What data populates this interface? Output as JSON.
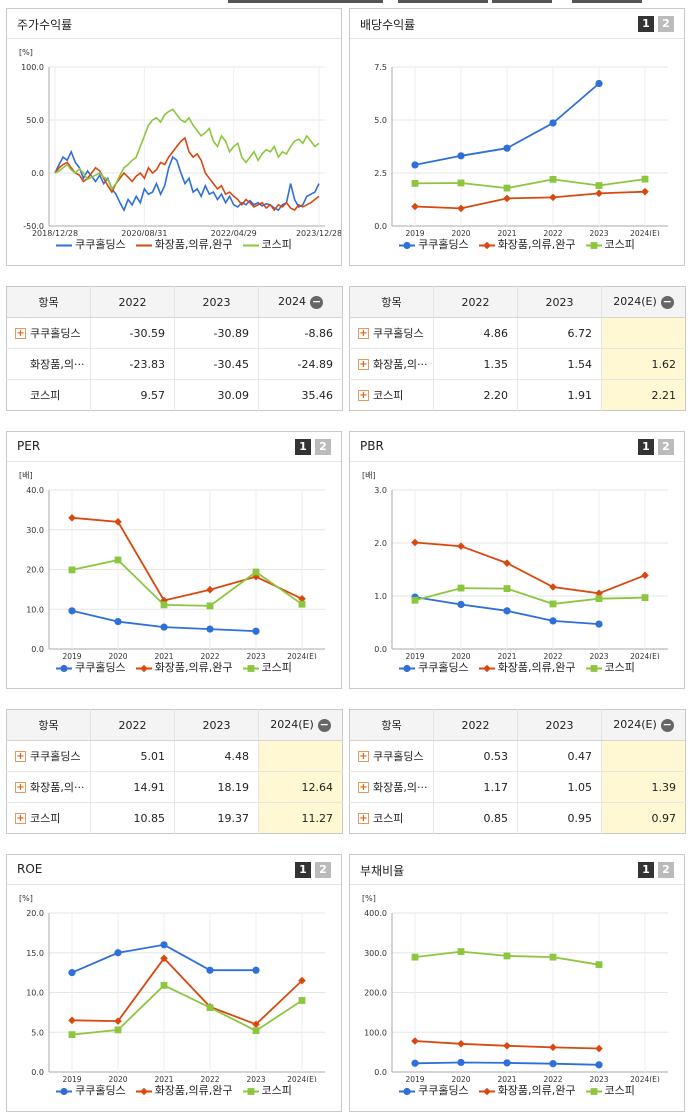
{
  "colors": {
    "kukuh": "#2e6fd9",
    "cosmetics": "#d9480f",
    "kospi": "#8cc63f"
  },
  "legend": {
    "kukuh": "쿠쿠홀딩스",
    "cosmetics": "화장품,의류,완구",
    "kospi": "코스피"
  },
  "panels": {
    "stock_return": {
      "title": "주가수익률"
    },
    "dividend": {
      "title": "배당수익률",
      "page1": "1",
      "page2": "2"
    },
    "per": {
      "title": "PER",
      "page1": "1",
      "page2": "2"
    },
    "pbr": {
      "title": "PBR",
      "page1": "1",
      "page2": "2"
    },
    "roe": {
      "title": "ROE",
      "page1": "1",
      "page2": "2"
    },
    "debt": {
      "title": "부채비율",
      "page1": "1",
      "page2": "2"
    }
  },
  "tables": {
    "stock_return": {
      "headers": [
        "항목",
        "2022",
        "2023",
        "2024"
      ],
      "rows": [
        {
          "name": "쿠쿠홀딩스",
          "plus": true,
          "values": [
            "-30.59",
            "-30.89",
            "-8.86"
          ]
        },
        {
          "name": "화장품,의···",
          "plus": false,
          "values": [
            "-23.83",
            "-30.45",
            "-24.89"
          ]
        },
        {
          "name": "코스피",
          "plus": false,
          "values": [
            "9.57",
            "30.09",
            "35.46"
          ]
        }
      ]
    },
    "dividend": {
      "headers": [
        "항목",
        "2022",
        "2023",
        "2024(E)"
      ],
      "rows": [
        {
          "name": "쿠쿠홀딩스",
          "plus": true,
          "values": [
            "4.86",
            "6.72",
            ""
          ]
        },
        {
          "name": "화장품,의···",
          "plus": true,
          "values": [
            "1.35",
            "1.54",
            "1.62"
          ]
        },
        {
          "name": "코스피",
          "plus": true,
          "values": [
            "2.20",
            "1.91",
            "2.21"
          ]
        }
      ]
    },
    "per": {
      "headers": [
        "항목",
        "2022",
        "2023",
        "2024(E)"
      ],
      "rows": [
        {
          "name": "쿠쿠홀딩스",
          "plus": true,
          "values": [
            "5.01",
            "4.48",
            ""
          ]
        },
        {
          "name": "화장품,의···",
          "plus": true,
          "values": [
            "14.91",
            "18.19",
            "12.64"
          ]
        },
        {
          "name": "코스피",
          "plus": true,
          "values": [
            "10.85",
            "19.37",
            "11.27"
          ]
        }
      ]
    },
    "pbr": {
      "headers": [
        "항목",
        "2022",
        "2023",
        "2024(E)"
      ],
      "rows": [
        {
          "name": "쿠쿠홀딩스",
          "plus": true,
          "values": [
            "0.53",
            "0.47",
            ""
          ]
        },
        {
          "name": "화장품,의···",
          "plus": true,
          "values": [
            "1.17",
            "1.05",
            "1.39"
          ]
        },
        {
          "name": "코스피",
          "plus": true,
          "values": [
            "0.85",
            "0.95",
            "0.97"
          ]
        }
      ]
    }
  },
  "chart_data": [
    {
      "id": "stock_return",
      "type": "line",
      "unit": "[%]",
      "ylim": [
        -50,
        100
      ],
      "yticks": [
        "100.0",
        "50.0",
        "0.0",
        "-50.0"
      ],
      "xticks": [
        "2018/12/28",
        "2020/08/31",
        "2022/04/29",
        "2023/12/28"
      ],
      "grid": true,
      "series": [
        {
          "name": "쿠쿠홀딩스",
          "color_key": "kukuh",
          "marker": "none",
          "values": [
            0,
            8,
            15,
            12,
            20,
            10,
            5,
            -5,
            2,
            -3,
            -8,
            -2,
            -10,
            -5,
            -15,
            -20,
            -28,
            -35,
            -25,
            -30,
            -22,
            -28,
            -15,
            -20,
            -18,
            -10,
            -20,
            -12,
            5,
            15,
            12,
            0,
            -10,
            -5,
            -18,
            -15,
            -22,
            -12,
            -20,
            -18,
            -25,
            -20,
            -28,
            -22,
            -30,
            -32,
            -28,
            -30,
            -26,
            -30,
            -28,
            -31,
            -29,
            -30,
            -33,
            -35,
            -30,
            -28,
            -10,
            -25,
            -32,
            -30,
            -22,
            -20,
            -18,
            -10
          ]
        },
        {
          "name": "화장품,의류,완구",
          "color_key": "cosmetics",
          "marker": "none",
          "values": [
            0,
            5,
            8,
            10,
            5,
            0,
            -2,
            -8,
            -5,
            0,
            5,
            2,
            -5,
            -12,
            -18,
            -10,
            -5,
            0,
            -4,
            -8,
            -3,
            0,
            -5,
            5,
            0,
            3,
            10,
            8,
            15,
            20,
            25,
            30,
            33,
            20,
            15,
            18,
            12,
            0,
            -5,
            -10,
            -15,
            -12,
            -20,
            -18,
            -22,
            -25,
            -30,
            -25,
            -28,
            -32,
            -30,
            -28,
            -33,
            -30,
            -35,
            -30,
            -32,
            -28,
            -33,
            -35,
            -30,
            -32,
            -30,
            -28,
            -25,
            -22
          ]
        },
        {
          "name": "코스피",
          "color_key": "kospi",
          "marker": "none",
          "values": [
            0,
            2,
            5,
            8,
            3,
            0,
            4,
            0,
            -6,
            -4,
            -2,
            0,
            -4,
            -6,
            -15,
            -10,
            -2,
            5,
            8,
            12,
            15,
            25,
            35,
            45,
            50,
            52,
            48,
            55,
            58,
            60,
            55,
            50,
            48,
            52,
            45,
            40,
            35,
            38,
            42,
            30,
            25,
            35,
            30,
            20,
            25,
            28,
            15,
            10,
            15,
            20,
            12,
            18,
            22,
            20,
            25,
            15,
            20,
            18,
            25,
            30,
            32,
            28,
            35,
            30,
            25,
            28
          ]
        }
      ]
    },
    {
      "id": "dividend",
      "type": "line",
      "unit": "",
      "ylim": [
        0,
        7.5
      ],
      "yticks": [
        "7.5",
        "5.0",
        "2.5",
        "0.0"
      ],
      "xticks": [
        "2019",
        "2020",
        "2021",
        "2022",
        "2023",
        "2024(E)"
      ],
      "grid": true,
      "series": [
        {
          "name": "쿠쿠홀딩스",
          "color_key": "kukuh",
          "marker": "circle",
          "values": [
            2.88,
            3.31,
            3.67,
            4.86,
            6.72,
            null
          ]
        },
        {
          "name": "화장품,의류,완구",
          "color_key": "cosmetics",
          "marker": "diamond",
          "values": [
            0.92,
            0.83,
            1.3,
            1.35,
            1.54,
            1.62
          ]
        },
        {
          "name": "코스피",
          "color_key": "kospi",
          "marker": "square",
          "values": [
            2.01,
            2.03,
            1.79,
            2.2,
            1.91,
            2.21
          ]
        }
      ]
    },
    {
      "id": "per",
      "type": "line",
      "unit": "[배]",
      "ylim": [
        0,
        40
      ],
      "yticks": [
        "40.0",
        "30.0",
        "20.0",
        "10.0",
        "0.0"
      ],
      "xticks": [
        "2019",
        "2020",
        "2021",
        "2022",
        "2023",
        "2024(E)"
      ],
      "grid": true,
      "series": [
        {
          "name": "쿠쿠홀딩스",
          "color_key": "kukuh",
          "marker": "circle",
          "values": [
            9.6,
            6.9,
            5.5,
            5.01,
            4.48,
            null
          ]
        },
        {
          "name": "화장품,의류,완구",
          "color_key": "cosmetics",
          "marker": "diamond",
          "values": [
            33.0,
            32.0,
            12.2,
            14.91,
            18.19,
            12.64
          ]
        },
        {
          "name": "코스피",
          "color_key": "kospi",
          "marker": "square",
          "values": [
            19.9,
            22.4,
            11.1,
            10.85,
            19.37,
            11.27
          ]
        }
      ]
    },
    {
      "id": "pbr",
      "type": "line",
      "unit": "[배]",
      "ylim": [
        0,
        3
      ],
      "yticks": [
        "3.0",
        "2.0",
        "1.0",
        "0.0"
      ],
      "xticks": [
        "2019",
        "2020",
        "2021",
        "2022",
        "2023",
        "2024(E)"
      ],
      "grid": true,
      "series": [
        {
          "name": "쿠쿠홀딩스",
          "color_key": "kukuh",
          "marker": "circle",
          "values": [
            0.98,
            0.84,
            0.72,
            0.53,
            0.47,
            null
          ]
        },
        {
          "name": "화장품,의류,완구",
          "color_key": "cosmetics",
          "marker": "diamond",
          "values": [
            2.01,
            1.94,
            1.62,
            1.17,
            1.05,
            1.39
          ]
        },
        {
          "name": "코스피",
          "color_key": "kospi",
          "marker": "square",
          "values": [
            0.92,
            1.15,
            1.14,
            0.85,
            0.95,
            0.97
          ]
        }
      ]
    },
    {
      "id": "roe",
      "type": "line",
      "unit": "[%]",
      "ylim": [
        0,
        20
      ],
      "yticks": [
        "20.0",
        "15.0",
        "10.0",
        "5.0",
        "0.0"
      ],
      "xticks": [
        "2019",
        "2020",
        "2021",
        "2022",
        "2023",
        "2024(E)"
      ],
      "grid": true,
      "series": [
        {
          "name": "쿠쿠홀딩스",
          "color_key": "kukuh",
          "marker": "circle",
          "values": [
            12.5,
            15.0,
            16.0,
            12.8,
            12.8,
            null
          ]
        },
        {
          "name": "화장품,의류,완구",
          "color_key": "cosmetics",
          "marker": "diamond",
          "values": [
            6.5,
            6.4,
            14.3,
            8.2,
            6.0,
            11.5
          ]
        },
        {
          "name": "코스피",
          "color_key": "kospi",
          "marker": "square",
          "values": [
            4.7,
            5.3,
            10.9,
            8.1,
            5.2,
            9.0
          ]
        }
      ]
    },
    {
      "id": "debt",
      "type": "line",
      "unit": "[%]",
      "ylim": [
        0,
        400
      ],
      "yticks": [
        "400.0",
        "300.0",
        "200.0",
        "100.0",
        "0.0"
      ],
      "xticks": [
        "2019",
        "2020",
        "2021",
        "2022",
        "2023",
        "2024(E)"
      ],
      "grid": true,
      "series": [
        {
          "name": "쿠쿠홀딩스",
          "color_key": "kukuh",
          "marker": "circle",
          "values": [
            22,
            24,
            23,
            21,
            18,
            null
          ]
        },
        {
          "name": "화장품,의류,완구",
          "color_key": "cosmetics",
          "marker": "diamond",
          "values": [
            78,
            71,
            66,
            62,
            59,
            null
          ]
        },
        {
          "name": "코스피",
          "color_key": "kospi",
          "marker": "square",
          "values": [
            289,
            303,
            292,
            289,
            270,
            null
          ]
        }
      ]
    }
  ]
}
